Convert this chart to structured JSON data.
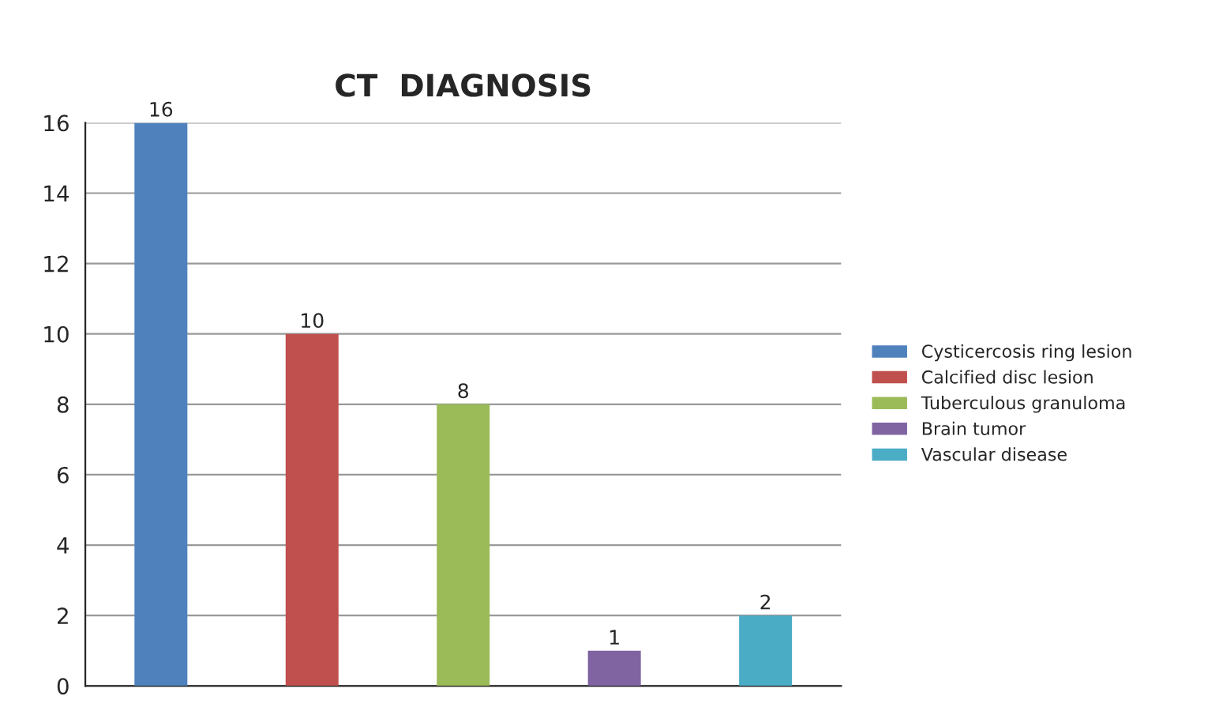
{
  "chart_data": {
    "type": "bar",
    "title": "CT  DIAGNOSIS",
    "categories": [
      null,
      null,
      null,
      null,
      null
    ],
    "series": [
      {
        "name": "Cysticercosis ring lesion",
        "color": "#4f81bd",
        "values": [
          16,
          null,
          null,
          null,
          null
        ]
      },
      {
        "name": "Calcified disc lesion",
        "color": "#c0504d",
        "values": [
          null,
          10,
          null,
          null,
          null
        ]
      },
      {
        "name": "Tuberculous granuloma",
        "color": "#9bbb59",
        "values": [
          null,
          null,
          8,
          null,
          null
        ]
      },
      {
        "name": "Brain tumor",
        "color": "#8064a2",
        "values": [
          null,
          null,
          null,
          1,
          null
        ]
      },
      {
        "name": "Vascular disease",
        "color": "#4bacc6",
        "values": [
          null,
          null,
          null,
          null,
          2
        ]
      }
    ],
    "ylim": [
      0,
      16
    ],
    "yticks": [
      0,
      2,
      4,
      6,
      8,
      10,
      12,
      14,
      16
    ],
    "grid": "y",
    "legend": "right",
    "data_labels": true
  }
}
